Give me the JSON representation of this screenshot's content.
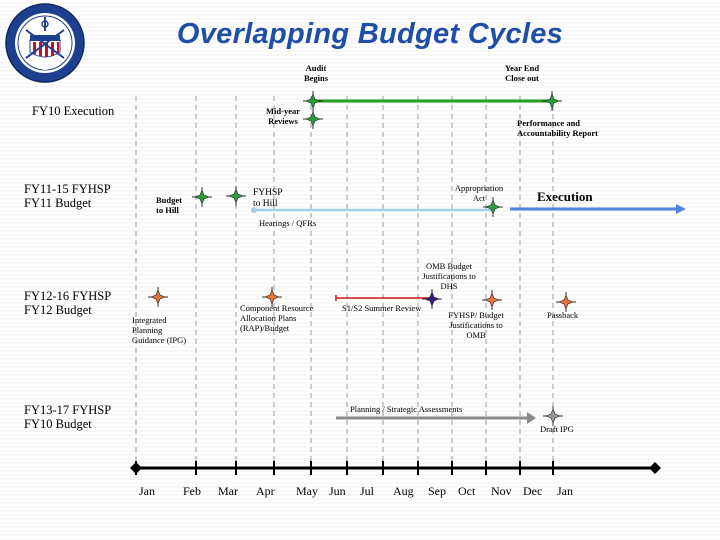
{
  "title": "Overlapping Budget Cycles",
  "seal_text": "UNITED STATES COAST GUARD 1790",
  "rows": {
    "fy10": "FY10 Execution",
    "fy11_line1": "FY11-15 FYHSP",
    "fy11_line2": "FY11 Budget",
    "fy12_line1": "FY12-16 FYHSP",
    "fy12_line2": "FY12 Budget",
    "fy13_line1": "FY13-17 FYHSP",
    "fy13_line2": "FY10 Budget"
  },
  "labels": {
    "audit_begins_1": "Audit",
    "audit_begins_2": "Begins",
    "year_end_1": "Year End",
    "year_end_2": "Close out",
    "midyear_1": "Mid-year",
    "midyear_2": "Reviews",
    "perf_1": "Performance and",
    "perf_2": "Accountability Report",
    "budget_hill_1": "Budget",
    "budget_hill_2": "to Hill",
    "fyhsp_hill_1": "FYHSP",
    "fyhsp_hill_2": "to Hill",
    "approp_1": "Appropriation",
    "approp_2": "Act",
    "execution": "Execution",
    "hearings": "Hearings / QFRs",
    "omb_1": "OMB Budget",
    "omb_2": "Justifications to",
    "omb_3": "DHS",
    "component_1": "Component Resource",
    "component_2": "Allocation Plans",
    "component_3": "(RAP)/Budget",
    "s1s2": "S1/S2 Summer Review",
    "fyhsp_budget_1": "FYHSP/ Budget",
    "fyhsp_budget_2": "Justifications to",
    "fyhsp_budget_3": "OMB",
    "passback": "Passback",
    "ipg_1": "Integrated",
    "ipg_2": "Planning",
    "ipg_3": "Guidance (IPG)",
    "planning": "Planning / Strategic Assessments",
    "draft_ipg": "Draft IPG"
  },
  "months": [
    "Jan",
    "Feb",
    "Mar",
    "Apr",
    "May",
    "Jun",
    "Jul",
    "Aug",
    "Sep",
    "Oct",
    "Nov",
    "Dec",
    "Jan"
  ],
  "colors": {
    "title": "#1f4ea8",
    "green_bar": "#22a022",
    "blue_bar": "#4f86e0",
    "light_blue_bar": "#9ed0ec",
    "red_bar": "#d01818",
    "gray_bar": "#8a8a8a",
    "marker_green": "#2e9e3c",
    "marker_orange": "#e8743a",
    "marker_gray": "#9a9a9a",
    "marker_purple": "#3a1a7a"
  }
}
